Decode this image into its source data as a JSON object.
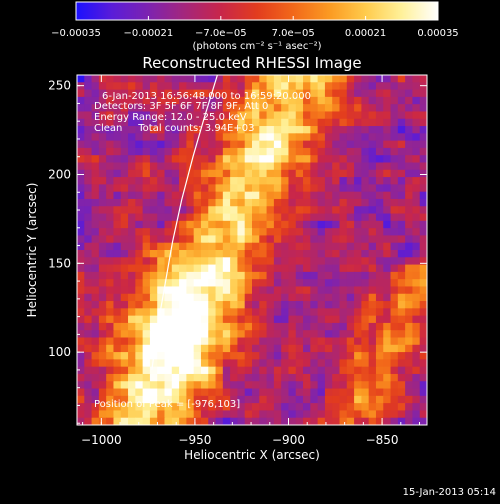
{
  "chart_data": {
    "type": "heatmap",
    "title": "Reconstructed RHESSI Image",
    "info_lines": [
      "6-Jan-2013 16:56:48.000 to 16:59:20.000",
      "Detectors: 3F 5F 6F 7F 8F 9F, Att 0",
      "Energy Range: 12.0 - 25.0 keV",
      "Clean     Total counts: 3.94E+03"
    ],
    "peak_label": "Position of Peak = [-976,103]",
    "xlabel": "Heliocentric X (arcsec)",
    "ylabel": "Heliocentric Y (arcsec)",
    "xlim": [
      -1013,
      -826
    ],
    "ylim": [
      59,
      256
    ],
    "xticks": [
      {
        "value": -1000,
        "label": "−1000"
      },
      {
        "value": -950,
        "label": "−950"
      },
      {
        "value": -900,
        "label": "−900"
      },
      {
        "value": -850,
        "label": "−850"
      }
    ],
    "yticks": [
      {
        "value": 100,
        "label": "100"
      },
      {
        "value": 150,
        "label": "150"
      },
      {
        "value": 200,
        "label": "200"
      },
      {
        "value": 250,
        "label": "250"
      }
    ],
    "colorbar": {
      "range": [
        -0.00035,
        0.00035
      ],
      "ticks": [
        {
          "value": -0.00035,
          "label": "−0.00035"
        },
        {
          "value": -0.00021,
          "label": "−0.00021"
        },
        {
          "value": -7e-05,
          "label": "−7.0e−05"
        },
        {
          "value": 7e-05,
          "label": "7.0e−05"
        },
        {
          "value": 0.00021,
          "label": "0.00021"
        },
        {
          "value": 0.00035,
          "label": "0.00035"
        }
      ],
      "units": "(photons cm⁻² s⁻¹ asec⁻²)",
      "colors": [
        "#1a10ff",
        "#5a1cd8",
        "#7d23b0",
        "#a4267c",
        "#c8264a",
        "#e23c1e",
        "#f2681a",
        "#fb9a22",
        "#ffcb4c",
        "#fff19a",
        "#ffffff"
      ]
    },
    "limb_curve": [
      {
        "x": -938,
        "y": 256
      },
      {
        "x": -945,
        "y": 232
      },
      {
        "x": -951,
        "y": 210
      },
      {
        "x": -957,
        "y": 186
      },
      {
        "x": -962,
        "y": 162
      },
      {
        "x": -966,
        "y": 138
      },
      {
        "x": -970,
        "y": 114
      },
      {
        "x": -973,
        "y": 90
      }
    ],
    "grid": false
  },
  "footer": {
    "timestamp": "15-Jan-2013 05:14"
  }
}
